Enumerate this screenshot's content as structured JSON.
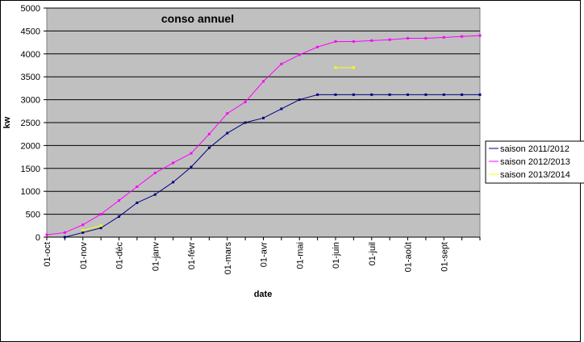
{
  "chart_data": {
    "type": "line",
    "title": "conso annuel",
    "x_label": "date",
    "y_label": "kw",
    "categories": [
      "01-oct",
      null,
      "01-nov",
      null,
      "01-déc",
      null,
      "01-janv",
      null,
      "01-févr",
      null,
      "01-mars",
      null,
      "01-avr",
      null,
      "01-mai",
      null,
      "01-juin",
      null,
      "01-juil",
      null,
      "01-août",
      null,
      "01-sept",
      null,
      null
    ],
    "series": [
      {
        "name": "saison 2011/2012",
        "color": "#000080",
        "values": [
          null,
          0,
          100,
          200,
          450,
          750,
          930,
          1200,
          1530,
          1950,
          2270,
          2500,
          2600,
          2800,
          3000,
          3110,
          3110,
          3110,
          3110,
          3110,
          3110,
          3110,
          3110,
          3110,
          3110
        ]
      },
      {
        "name": "saison 2012/2013",
        "color": "#ff00ff",
        "values": [
          50,
          100,
          270,
          500,
          800,
          1100,
          1400,
          1620,
          1830,
          2250,
          2700,
          2950,
          3400,
          3780,
          3980,
          4150,
          4270,
          4270,
          4290,
          4310,
          4340,
          4340,
          4360,
          4380,
          4400
        ]
      },
      {
        "name": "saison 2013/2014",
        "color": "#ffff00",
        "values": [
          null,
          null,
          150,
          250,
          null,
          null,
          null,
          null,
          null,
          null,
          null,
          null,
          null,
          null,
          null,
          null,
          3700,
          3700,
          null,
          null,
          null,
          null,
          null,
          null,
          null
        ]
      }
    ],
    "ylim": [
      0,
      5000
    ],
    "yticks": [
      0,
      500,
      1000,
      1500,
      2000,
      2500,
      3000,
      3500,
      4000,
      4500,
      5000
    ],
    "grid": true,
    "legend": "right"
  }
}
